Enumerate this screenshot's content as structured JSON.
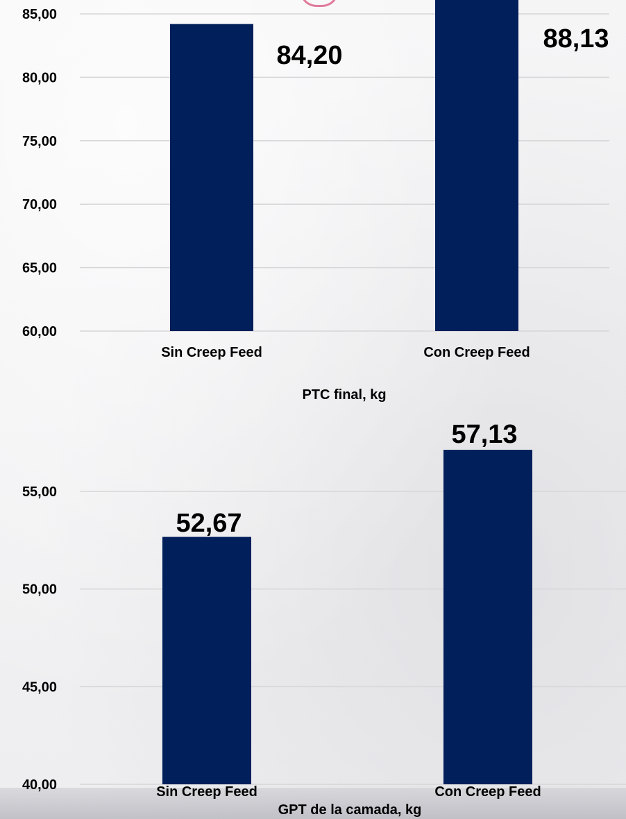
{
  "chart_data": [
    {
      "type": "bar",
      "categories": [
        "Sin Creep Feed",
        "Con Creep Feed"
      ],
      "values": [
        84.2,
        88.13
      ],
      "data_labels": [
        "84,20",
        "88,13"
      ],
      "xlabel": "PTC final, kg",
      "ylabel": "",
      "ylim": [
        60,
        85
      ],
      "yticks": [
        "60,00",
        "65,00",
        "70,00",
        "75,00",
        "80,00",
        "85,00"
      ],
      "grid": true,
      "bar_color": "#001f5b"
    },
    {
      "type": "bar",
      "categories": [
        "Sin Creep Feed",
        "Con Creep Feed"
      ],
      "values": [
        52.67,
        57.13
      ],
      "data_labels": [
        "52,67",
        "57,13"
      ],
      "xlabel": "GPT de la camada, kg",
      "ylabel": "",
      "ylim": [
        40,
        55
      ],
      "yticks": [
        "40,00",
        "45,00",
        "50,00",
        "55,00"
      ],
      "grid": true,
      "bar_color": "#001f5b"
    }
  ]
}
